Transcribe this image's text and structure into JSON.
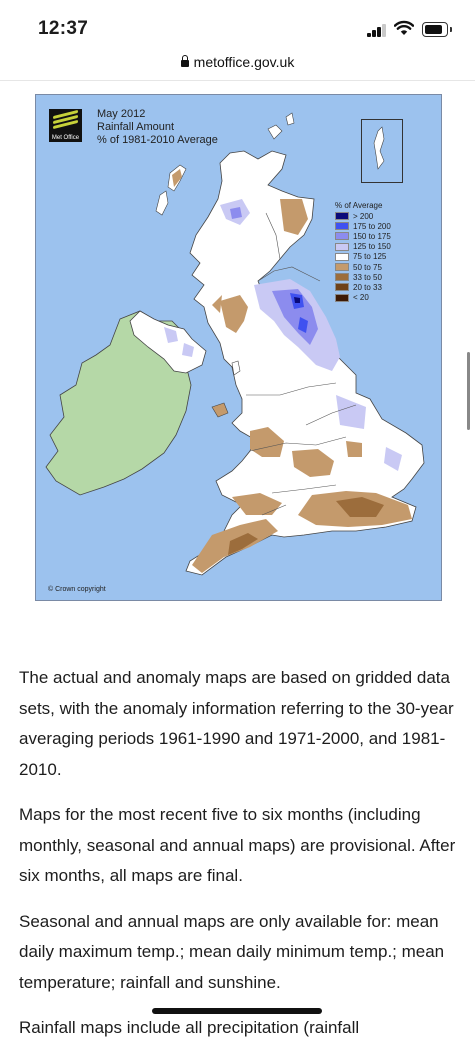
{
  "status_bar": {
    "time": "12:37"
  },
  "browser": {
    "url": "metoffice.gov.uk"
  },
  "map": {
    "logo_text": "Met Office",
    "title_lines": [
      "May 2012",
      "Rainfall Amount",
      "% of 1981-2010 Average"
    ],
    "legend_title": "% of Average",
    "legend": [
      {
        "label": "> 200",
        "color": "#0a0a7a"
      },
      {
        "label": "175 to 200",
        "color": "#3f51f0"
      },
      {
        "label": "150 to 175",
        "color": "#8c8cee"
      },
      {
        "label": "125 to 150",
        "color": "#c9c9f4"
      },
      {
        "label": "75 to 125",
        "color": "#ffffff"
      },
      {
        "label": "50 to 75",
        "color": "#c49a6c"
      },
      {
        "label": "33 to 50",
        "color": "#9c6d3c"
      },
      {
        "label": "20 to 33",
        "color": "#6e4119"
      },
      {
        "label": "< 20",
        "color": "#3d1a05"
      }
    ],
    "copyright": "© Crown copyright",
    "colors": {
      "sea": "#9cc2ee",
      "ireland": "#b5d8a7",
      "land": "#ffffff",
      "border": "#555555"
    }
  },
  "article": {
    "paragraphs": [
      "The actual and anomaly maps are based on gridded data sets, with the anomaly information referring to the 30-year averaging periods 1961-1990 and 1971-2000, and 1981-2010.",
      "Maps for the most recent five to six months (including monthly, seasonal and annual maps) are provisional. After six months, all maps are final.",
      "Seasonal and annual maps are only available for: mean daily maximum temp.; mean daily minimum temp.; mean temperature; rainfall and sunshine.",
      "Rainfall maps include all precipitation (rainfall"
    ]
  }
}
